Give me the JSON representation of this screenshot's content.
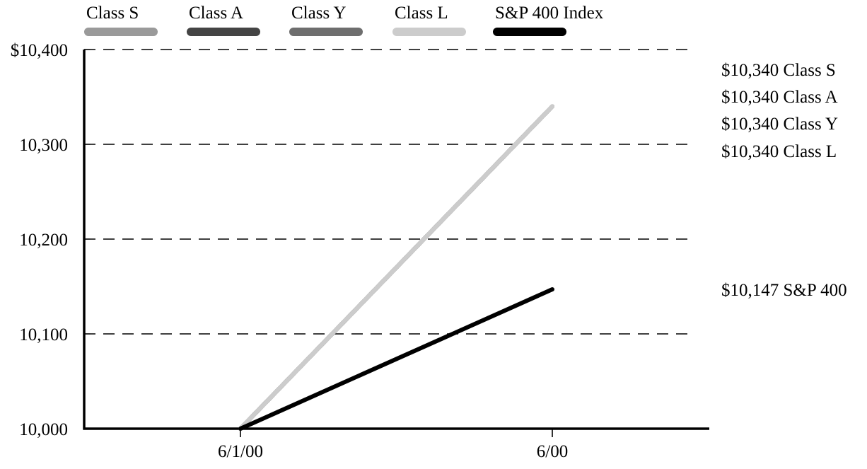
{
  "chart_data": {
    "type": "line",
    "categories": [
      "6/1/00",
      "6/00"
    ],
    "series": [
      {
        "name": "Class S",
        "values": [
          10000,
          10340
        ],
        "color": "#9a9a9a",
        "end_label": "$10,340 Class S"
      },
      {
        "name": "Class A",
        "values": [
          10000,
          10340
        ],
        "color": "#444444",
        "end_label": "$10,340 Class A"
      },
      {
        "name": "Class Y",
        "values": [
          10000,
          10340
        ],
        "color": "#6e6e6e",
        "end_label": "$10,340 Class Y"
      },
      {
        "name": "Class L",
        "values": [
          10000,
          10340
        ],
        "color": "#cccccc",
        "end_label": "$10,340 Class L"
      },
      {
        "name": "S&P 400 Index",
        "values": [
          10000,
          10147
        ],
        "color": "#000000",
        "end_label": "$10,147 S&P 400"
      }
    ],
    "yticks": [
      {
        "value": 10000,
        "label": "10,000"
      },
      {
        "value": 10100,
        "label": "10,100"
      },
      {
        "value": 10200,
        "label": "10,200"
      },
      {
        "value": 10300,
        "label": "10,300"
      },
      {
        "value": 10400,
        "label": "$10,400"
      }
    ],
    "ylim": [
      10000,
      10400
    ],
    "grid": "dashed horizontal",
    "legend_position": "top",
    "title": "",
    "xlabel": "",
    "ylabel": ""
  }
}
